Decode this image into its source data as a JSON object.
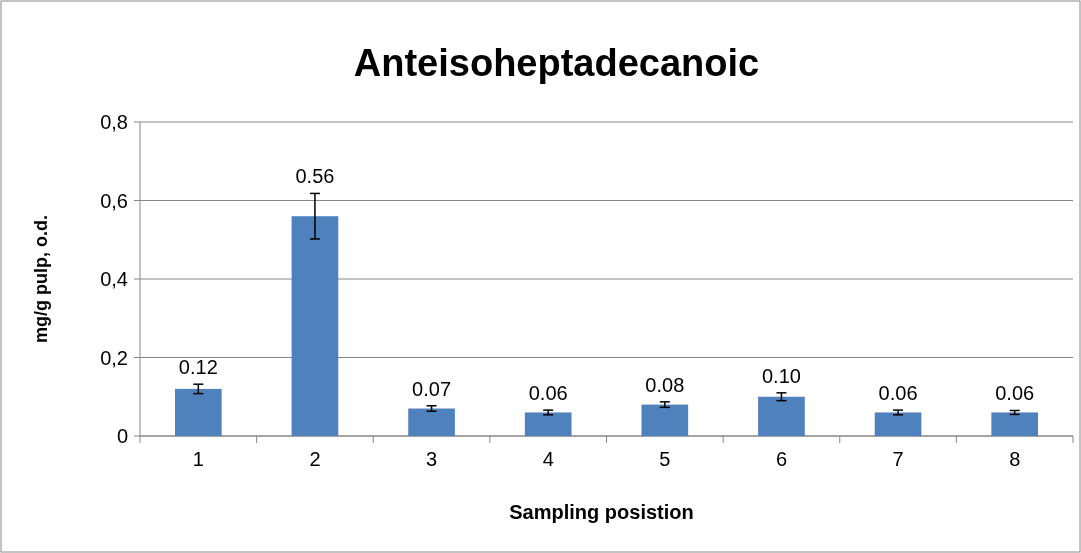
{
  "chart_data": {
    "type": "bar",
    "title": "Anteisoheptadecanoic",
    "xlabel": "Sampling posistion",
    "ylabel": "mg/g pulp, o.d.",
    "categories": [
      "1",
      "2",
      "3",
      "4",
      "5",
      "6",
      "7",
      "8"
    ],
    "values": [
      0.12,
      0.56,
      0.07,
      0.06,
      0.08,
      0.1,
      0.06,
      0.06
    ],
    "errors": [
      0.012,
      0.058,
      0.007,
      0.006,
      0.007,
      0.01,
      0.006,
      0.005
    ],
    "value_labels": [
      "0.12",
      "0.56",
      "0.07",
      "0.06",
      "0.08",
      "0.10",
      "0.06",
      "0.06"
    ],
    "color": "#4f81bd",
    "ylim": [
      0,
      0.8
    ],
    "yticks": [
      {
        "value": 0,
        "label": "0"
      },
      {
        "value": 0.2,
        "label": "0,2"
      },
      {
        "value": 0.4,
        "label": "0,4"
      },
      {
        "value": 0.6,
        "label": "0,6"
      },
      {
        "value": 0.8,
        "label": "0,8"
      }
    ],
    "grid": "y"
  }
}
